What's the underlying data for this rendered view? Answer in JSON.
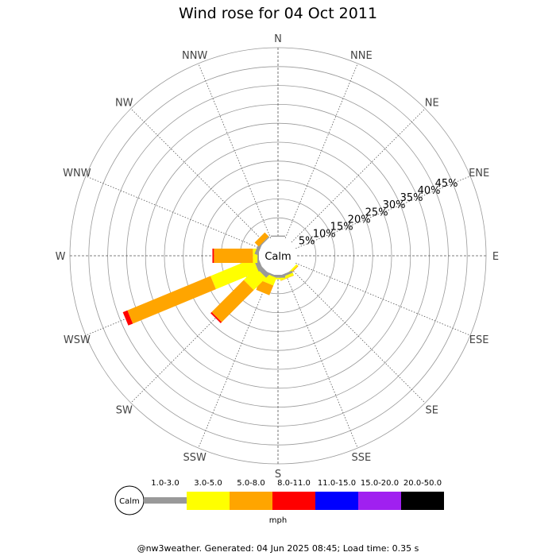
{
  "footer": "@nw3weather. Generated: 04 Jun 2025 08:45; Load time: 0.35 s",
  "chart_data": {
    "type": "wind-rose",
    "title": "Wind rose for 04 Oct 2011",
    "center_label": "Calm",
    "directions": [
      "N",
      "NNE",
      "NE",
      "ENE",
      "E",
      "ESE",
      "SE",
      "SSE",
      "S",
      "SSW",
      "SW",
      "WSW",
      "W",
      "WNW",
      "NW",
      "NNW"
    ],
    "radial_ticks": [
      "5%",
      "10%",
      "15%",
      "20%",
      "25%",
      "30%",
      "35%",
      "40%",
      "45%"
    ],
    "rmax": 50,
    "unit": "mph",
    "speed_bins": [
      {
        "label": "1.0-3.0",
        "color": "#999999"
      },
      {
        "label": "3.0-5.0",
        "color": "#ffff00"
      },
      {
        "label": "5.0-8.0",
        "color": "#ffa500"
      },
      {
        "label": "8.0-11.0",
        "color": "#ff0000"
      },
      {
        "label": "11.0-15.0",
        "color": "#0000ff"
      },
      {
        "label": "15.0-20.0",
        "color": "#a020f0"
      },
      {
        "label": "20.0-50.0",
        "color": "#000000"
      }
    ],
    "series": [
      {
        "direction": "N",
        "values": [
          0.3,
          0,
          0,
          0,
          0,
          0,
          0
        ]
      },
      {
        "direction": "NNE",
        "values": [
          0,
          0,
          0,
          0,
          0,
          0,
          0
        ]
      },
      {
        "direction": "NE",
        "values": [
          0,
          0,
          0,
          0,
          0,
          0,
          0
        ]
      },
      {
        "direction": "ENE",
        "values": [
          0,
          0,
          0,
          0,
          0,
          0,
          0
        ]
      },
      {
        "direction": "E",
        "values": [
          0,
          0,
          0,
          0,
          0,
          0,
          0
        ]
      },
      {
        "direction": "ESE",
        "values": [
          0,
          0,
          0,
          0,
          0,
          0,
          0
        ]
      },
      {
        "direction": "SE",
        "values": [
          0,
          0.5,
          0.2,
          0,
          0,
          0,
          0
        ]
      },
      {
        "direction": "SSE",
        "values": [
          0.6,
          0.7,
          0.1,
          0,
          0,
          0,
          0
        ]
      },
      {
        "direction": "S",
        "values": [
          0.8,
          0.4,
          0,
          0,
          0,
          0,
          0
        ]
      },
      {
        "direction": "SSW",
        "values": [
          0.5,
          2.2,
          2.8,
          0,
          0,
          0,
          0
        ]
      },
      {
        "direction": "SW",
        "values": [
          1.3,
          4.6,
          12.0,
          0.4,
          0,
          0,
          0
        ]
      },
      {
        "direction": "WSW",
        "values": [
          1.3,
          12.2,
          23.8,
          1.3,
          0,
          0,
          0
        ]
      },
      {
        "direction": "W",
        "values": [
          0.4,
          1.2,
          10.3,
          0.4,
          0,
          0,
          0
        ]
      },
      {
        "direction": "WNW",
        "values": [
          0.9,
          0,
          0,
          0,
          0,
          0,
          0
        ]
      },
      {
        "direction": "NW",
        "values": [
          0.3,
          0,
          1.5,
          0,
          0,
          0,
          0
        ]
      },
      {
        "direction": "NNW",
        "values": [
          0,
          0,
          0,
          0,
          0,
          0,
          0
        ]
      }
    ],
    "grid": true
  }
}
